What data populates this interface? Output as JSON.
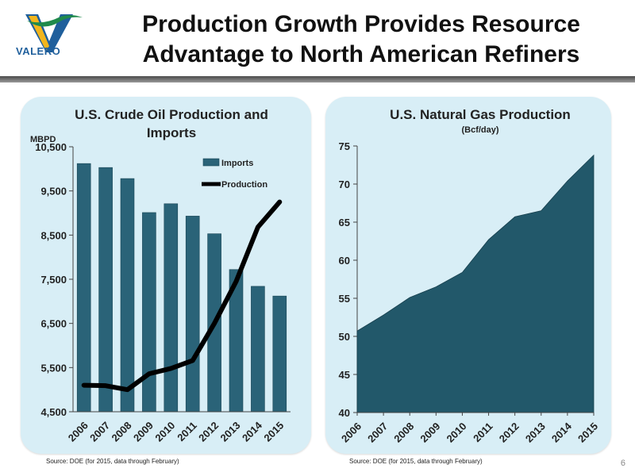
{
  "header": {
    "logo_text": "VALERO",
    "title_line1": "Production Growth Provides Resource",
    "title_line2": "Advantage to North American Refiners"
  },
  "footer": {
    "source_left": "Source:  DOE (for 2015, data through February)",
    "source_right": "Source:  DOE (for 2015, data through February)",
    "page_number": "6"
  },
  "colors": {
    "bar_fill": "#2a6378",
    "area_fill": "#22586a",
    "line": "#000000",
    "panel_bg": "#d8eef6"
  },
  "chart_data": [
    {
      "type": "bar",
      "title_line1": "U.S. Crude Oil Production and",
      "title_line2": "Imports",
      "ylabel": "MBPD",
      "categories": [
        "2006",
        "2007",
        "2008",
        "2009",
        "2010",
        "2011",
        "2012",
        "2013",
        "2014",
        "2015"
      ],
      "ylim": [
        4500,
        10500
      ],
      "yticks": [
        "4,500",
        "5,500",
        "6,500",
        "7,500",
        "8,500",
        "9,500",
        "10,500"
      ],
      "ytick_values": [
        4500,
        5500,
        6500,
        7500,
        8500,
        9500,
        10500
      ],
      "legend_position": "top-right",
      "series": [
        {
          "name": "Imports",
          "kind": "bar",
          "values": [
            10120,
            10030,
            9780,
            9010,
            9210,
            8930,
            8530,
            7720,
            7340,
            7120
          ]
        },
        {
          "name": "Production",
          "kind": "line",
          "values": [
            5100,
            5090,
            5000,
            5360,
            5480,
            5660,
            6500,
            7450,
            8680,
            9250
          ]
        }
      ]
    },
    {
      "type": "area",
      "title": "U.S. Natural Gas Production",
      "subtitle": "(Bcf/day)",
      "categories": [
        "2006",
        "2007",
        "2008",
        "2009",
        "2010",
        "2011",
        "2012",
        "2013",
        "2014",
        "2015"
      ],
      "values": [
        50.7,
        52.8,
        55.1,
        56.5,
        58.4,
        62.7,
        65.7,
        66.5,
        70.4,
        73.8
      ],
      "ylim": [
        40,
        75
      ],
      "yticks": [
        "40",
        "45",
        "50",
        "55",
        "60",
        "65",
        "70",
        "75"
      ],
      "ytick_values": [
        40,
        45,
        50,
        55,
        60,
        65,
        70,
        75
      ]
    }
  ]
}
